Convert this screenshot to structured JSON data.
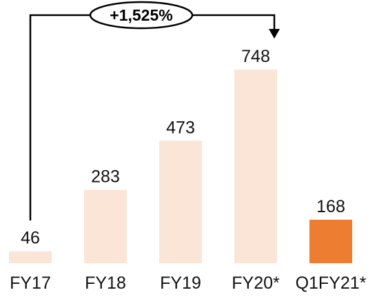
{
  "chart_data": {
    "type": "bar",
    "categories": [
      "FY17",
      "FY18",
      "FY19",
      "FY20*",
      "Q1FY21*"
    ],
    "values": [
      46,
      283,
      473,
      748,
      168
    ],
    "data_labels": [
      "46",
      "283",
      "473",
      "748",
      "168"
    ],
    "title": "",
    "xlabel": "",
    "ylabel": "",
    "ylim": [
      0,
      800
    ],
    "grid": false,
    "legend": "none",
    "bar_colors": [
      "#FBE5D6",
      "#FBE5D6",
      "#FBE5D6",
      "#FBE5D6",
      "#ED7D31"
    ],
    "annotation": {
      "text": "+1,525%",
      "from_category": "FY17",
      "to_category": "FY20*"
    }
  }
}
